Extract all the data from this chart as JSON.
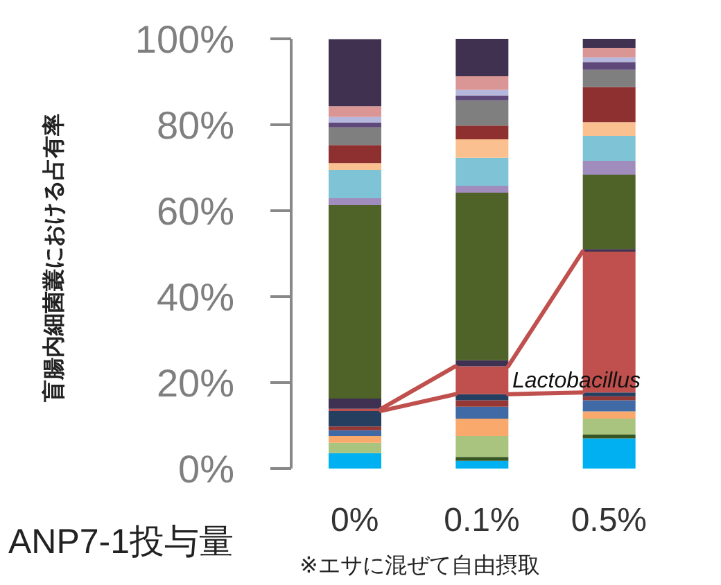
{
  "chart_data": {
    "type": "bar",
    "stacked": true,
    "ylabel": "盲腸内細菌叢における占有率",
    "xlabel": "ANP7-1投与量",
    "annotations": [
      "※エサに混ぜて自由摂取"
    ],
    "categories": [
      "0%",
      "0.1%",
      "0.5%"
    ],
    "ylim": [
      0,
      100
    ],
    "yticks": [
      {
        "value": 0,
        "label": "0%"
      },
      {
        "value": 20,
        "label": "20%"
      },
      {
        "value": 40,
        "label": "40%"
      },
      {
        "value": 60,
        "label": "60%"
      },
      {
        "value": 80,
        "label": "80%"
      },
      {
        "value": 100,
        "label": "100%"
      }
    ],
    "grid": false,
    "legend": false,
    "series": [
      {
        "color": "#00b0f0",
        "values": [
          3.6,
          1.8,
          7.0
        ]
      },
      {
        "color": "#375623",
        "values": [
          0,
          0.9,
          0.9
        ]
      },
      {
        "color": "#a9c47f",
        "values": [
          2.4,
          4.9,
          3.7
        ]
      },
      {
        "color": "#f9a96b",
        "values": [
          1.6,
          4.0,
          1.7
        ]
      },
      {
        "color": "#3f6aa5",
        "values": [
          1.3,
          2.8,
          2.6
        ]
      },
      {
        "color": "#953735",
        "values": [
          0.9,
          1.5,
          0.9
        ]
      },
      {
        "color": "#243f60",
        "values": [
          3.6,
          1.4,
          0.9
        ]
      },
      {
        "name": "Lactobacillus",
        "color": "#c0504d",
        "values": [
          0.5,
          6.5,
          32.8
        ]
      },
      {
        "color": "#3f3151",
        "values": [
          2.4,
          1.4,
          0.6
        ]
      },
      {
        "color": "#4f6228",
        "values": [
          45,
          39.0,
          17.3
        ]
      },
      {
        "color": "#a08cbd",
        "values": [
          1.6,
          1.6,
          3.2
        ]
      },
      {
        "color": "#7fc3d6",
        "values": [
          6.6,
          6.5,
          5.8
        ]
      },
      {
        "color": "#fac08f",
        "values": [
          1.6,
          4.3,
          3.2
        ]
      },
      {
        "color": "#8e3030",
        "values": [
          4.2,
          3.2,
          8.2
        ]
      },
      {
        "color": "#7f7f7f",
        "values": [
          4.1,
          5.9,
          4.0
        ]
      },
      {
        "color": "#5f497a",
        "values": [
          1.1,
          1.1,
          1.8
        ]
      },
      {
        "color": "#b6b7dc",
        "values": [
          1.3,
          1.3,
          1.1
        ]
      },
      {
        "color": "#d99694",
        "values": [
          2.5,
          3.2,
          2.2
        ]
      },
      {
        "color": "#403151",
        "values": [
          15.6,
          8.9,
          2.5
        ]
      }
    ]
  }
}
